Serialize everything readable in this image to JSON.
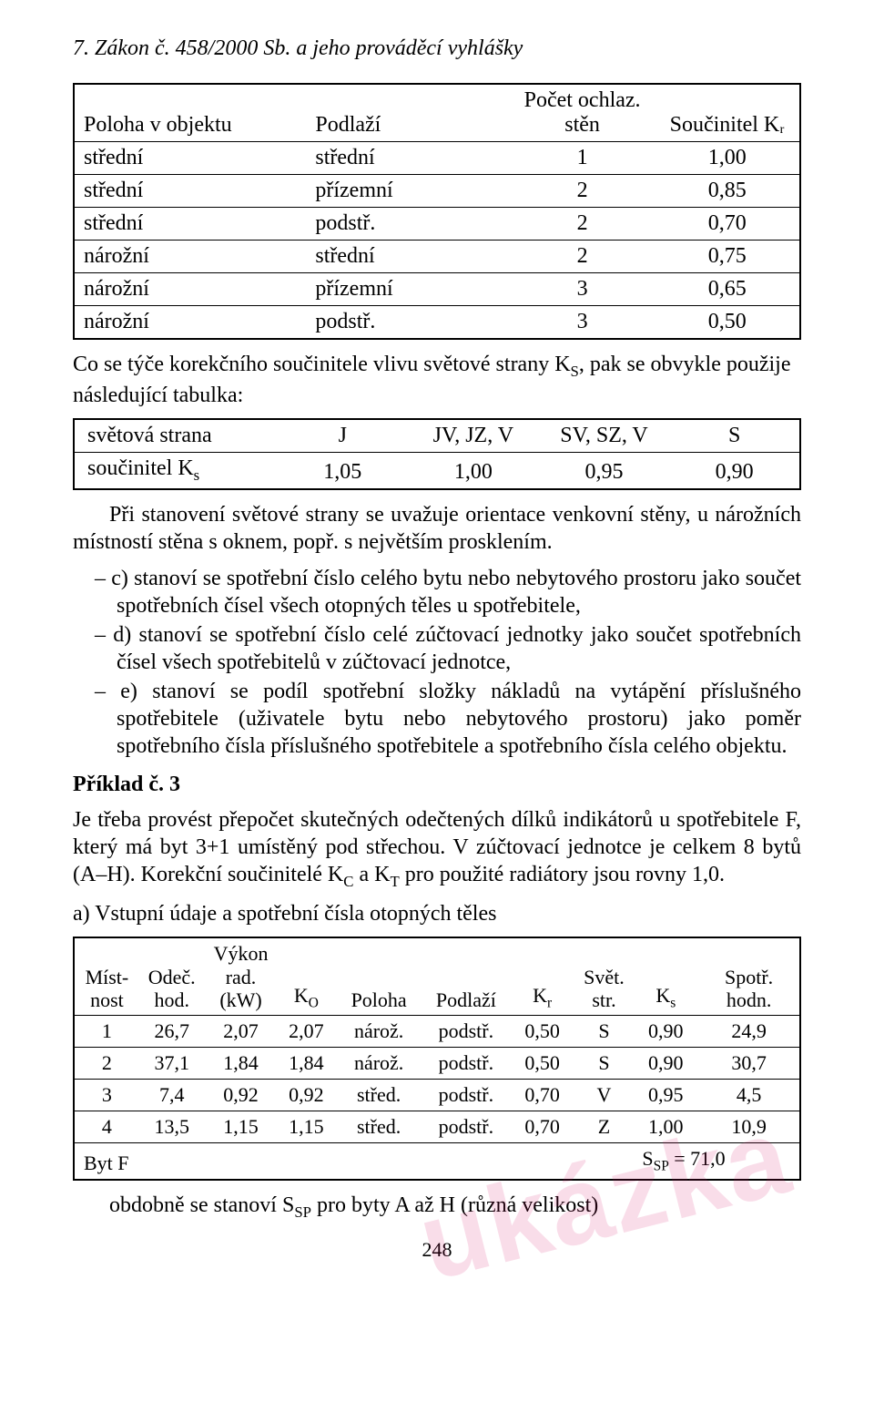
{
  "section_title": "7. Zákon č. 458/2000 Sb. a jeho prováděcí vyhlášky",
  "table1": {
    "headers": [
      "Poloha v objektu",
      "Podlaží",
      "Počet ochlaz. stěn",
      "Součinitel Kᵣ"
    ],
    "rows": [
      [
        "střední",
        "střední",
        "1",
        "1,00"
      ],
      [
        "střední",
        "přízemní",
        "2",
        "0,85"
      ],
      [
        "střední",
        "podstř.",
        "2",
        "0,70"
      ],
      [
        "nárožní",
        "střední",
        "2",
        "0,75"
      ],
      [
        "nárožní",
        "přízemní",
        "3",
        "0,65"
      ],
      [
        "nárožní",
        "podstř.",
        "3",
        "0,50"
      ]
    ]
  },
  "para_after_t1": "Co se týče korekčního součinitele vlivu světové strany K",
  "para_after_t1_sub": "S",
  "para_after_t1_cont": ", pak se obvykle použije následující tabulka:",
  "table2": {
    "headers": [
      "světová strana",
      "J",
      "JV, JZ, V",
      "SV, SZ, V",
      "S"
    ],
    "row_label": "součinitel K",
    "row_label_sub": "s",
    "row": [
      "1,05",
      "1,00",
      "0,95",
      "0,90"
    ]
  },
  "para_after_t2": "Při stanovení světové strany se uvažuje orientace venkovní stěny, u nárožních místností stěna s oknem, popř. s největším prosklením.",
  "bullets": [
    "c)  stanoví se spotřební číslo celého bytu nebo nebytového prostoru jako součet spotřebních čísel všech otopných těles u spotřebitele,",
    "d) stanoví se spotřební číslo celé zúčtovací jednotky jako součet spotřebních čísel všech spotřebitelů v zúčtovací jednotce,",
    "e)  stanoví se podíl spotřební složky nákladů na vytápění příslušného spotřebitele (uživatele bytu nebo nebytového prostoru) jako poměr spotřebního čísla příslušného spotřebitele a spotřebního čísla celého objektu."
  ],
  "example_heading": "Příklad č. 3",
  "example_para": "Je třeba provést přepočet skutečných odečtených dílků indikátorů u spotřebitele F, který má byt 3+1 umístěný pod střechou. V zúčtovací jednotce je celkem 8 bytů (A–H). Korekční součinitelé K",
  "example_para_sub1": "C",
  "example_para_mid": " a K",
  "example_para_sub2": "T",
  "example_para_end": " pro použité radiátory jsou rovny 1,0.",
  "sub_a": "a) Vstupní údaje a spotřební čísla otopných těles",
  "table3": {
    "headers": [
      "Míst-\nnost",
      "Odeč.\nhod.",
      "Výkon\nrad.\n(kW)",
      "Kₒ",
      "Poloha",
      "Podlaží",
      "Kᵣ",
      "Svět.\nstr.",
      "Kₛ",
      "Spotř.\nhodn."
    ],
    "rows": [
      [
        "1",
        "26,7",
        "2,07",
        "2,07",
        "nárož.",
        "podstř.",
        "0,50",
        "S",
        "0,90",
        "24,9"
      ],
      [
        "2",
        "37,1",
        "1,84",
        "1,84",
        "nárož.",
        "podstř.",
        "0,50",
        "S",
        "0,90",
        "30,7"
      ],
      [
        "3",
        "7,4",
        "0,92",
        "0,92",
        "střed.",
        "podstř.",
        "0,70",
        "V",
        "0,95",
        "4,5"
      ],
      [
        "4",
        "13,5",
        "1,15",
        "1,15",
        "střed.",
        "podstř.",
        "0,70",
        "Z",
        "1,00",
        "10,9"
      ]
    ],
    "lastrow_left": "Byt F",
    "lastrow_right_pre": "S",
    "lastrow_right_sub": "SP",
    "lastrow_right_post": " = 71,0"
  },
  "final_para_pre": "obdobně se stanoví S",
  "final_para_sub": "SP",
  "final_para_post": " pro byty A až H (různá velikost)",
  "page_number": "248",
  "watermark": "ukázka",
  "colors": {
    "text": "#000000",
    "bg": "#ffffff",
    "pink": "rgba(214,14,102,0.14)"
  }
}
